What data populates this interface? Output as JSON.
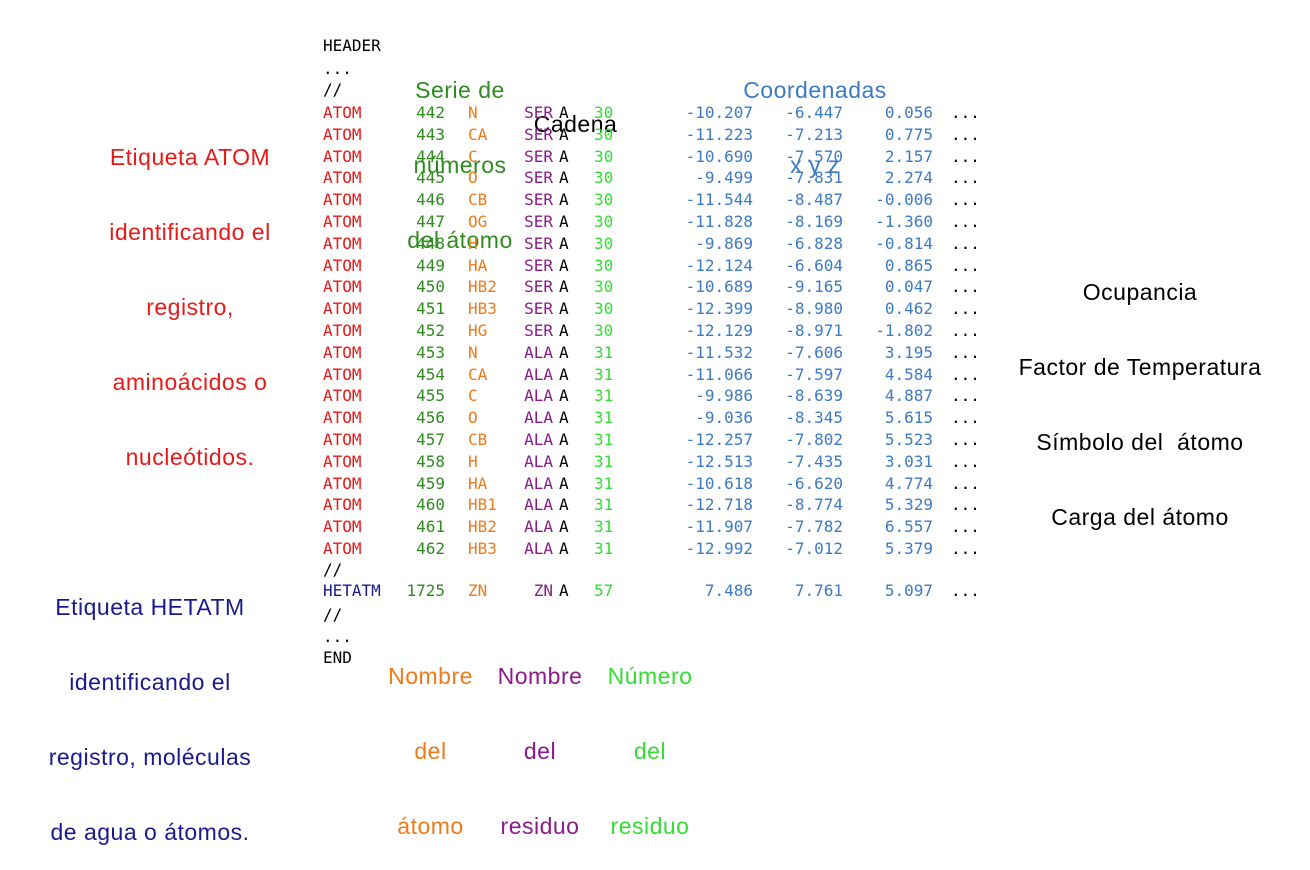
{
  "colors": {
    "record_atom": "#e81919",
    "record_hetatm": "#1a1a8c",
    "serial": "#2e8b1e",
    "atom_name": "#f07a1a",
    "residue_name": "#8a1a8a",
    "chain": "#000000",
    "residue_number": "#33dd33",
    "coordinates": "#3d7ac4",
    "text": "#000000"
  },
  "labels": {
    "atom_tag": [
      "Etiqueta ATOM",
      "identificando el",
      "registro,",
      "aminoácidos o",
      "nucleótidos."
    ],
    "hetatm_tag": [
      "Etiqueta HETATM",
      "identificando el",
      "registro, moléculas",
      "de agua o átomos."
    ],
    "extra_fields": [
      "Ocupancia",
      "Factor de Temperatura",
      "Símbolo del  átomo",
      "Carga del átomo"
    ],
    "serie": [
      "Serie de",
      "números",
      "del átomo"
    ],
    "cadena": "Cadena",
    "coordenadas": [
      "Coordenadas",
      "x y z"
    ],
    "nombre_atomo": [
      "Nombre",
      "del",
      "átomo"
    ],
    "nombre_residuo": [
      "Nombre",
      "del",
      "residuo"
    ],
    "numero_residuo": [
      "Número",
      "del",
      "residuo"
    ]
  },
  "file": {
    "header_lines": [
      "HEADER",
      "...",
      "//"
    ],
    "atoms": [
      {
        "record": "ATOM",
        "serial": "442",
        "name": "N",
        "res": "SER",
        "chain": "A",
        "resnum": "30",
        "x": "-10.207",
        "y": "-6.447",
        "z": "0.056",
        "more": "..."
      },
      {
        "record": "ATOM",
        "serial": "443",
        "name": "CA",
        "res": "SER",
        "chain": "A",
        "resnum": "30",
        "x": "-11.223",
        "y": "-7.213",
        "z": "0.775",
        "more": "..."
      },
      {
        "record": "ATOM",
        "serial": "444",
        "name": "C",
        "res": "SER",
        "chain": "A",
        "resnum": "30",
        "x": "-10.690",
        "y": "-7.570",
        "z": "2.157",
        "more": "..."
      },
      {
        "record": "ATOM",
        "serial": "445",
        "name": "O",
        "res": "SER",
        "chain": "A",
        "resnum": "30",
        "x": "-9.499",
        "y": "-7.831",
        "z": "2.274",
        "more": "..."
      },
      {
        "record": "ATOM",
        "serial": "446",
        "name": "CB",
        "res": "SER",
        "chain": "A",
        "resnum": "30",
        "x": "-11.544",
        "y": "-8.487",
        "z": "-0.006",
        "more": "..."
      },
      {
        "record": "ATOM",
        "serial": "447",
        "name": "OG",
        "res": "SER",
        "chain": "A",
        "resnum": "30",
        "x": "-11.828",
        "y": "-8.169",
        "z": "-1.360",
        "more": "..."
      },
      {
        "record": "ATOM",
        "serial": "448",
        "name": "H",
        "res": "SER",
        "chain": "A",
        "resnum": "30",
        "x": "-9.869",
        "y": "-6.828",
        "z": "-0.814",
        "more": "..."
      },
      {
        "record": "ATOM",
        "serial": "449",
        "name": "HA",
        "res": "SER",
        "chain": "A",
        "resnum": "30",
        "x": "-12.124",
        "y": "-6.604",
        "z": "0.865",
        "more": "..."
      },
      {
        "record": "ATOM",
        "serial": "450",
        "name": "HB2",
        "res": "SER",
        "chain": "A",
        "resnum": "30",
        "x": "-10.689",
        "y": "-9.165",
        "z": "0.047",
        "more": "..."
      },
      {
        "record": "ATOM",
        "serial": "451",
        "name": "HB3",
        "res": "SER",
        "chain": "A",
        "resnum": "30",
        "x": "-12.399",
        "y": "-8.980",
        "z": "0.462",
        "more": "..."
      },
      {
        "record": "ATOM",
        "serial": "452",
        "name": "HG",
        "res": "SER",
        "chain": "A",
        "resnum": "30",
        "x": "-12.129",
        "y": "-8.971",
        "z": "-1.802",
        "more": "..."
      },
      {
        "record": "ATOM",
        "serial": "453",
        "name": "N",
        "res": "ALA",
        "chain": "A",
        "resnum": "31",
        "x": "-11.532",
        "y": "-7.606",
        "z": "3.195",
        "more": "..."
      },
      {
        "record": "ATOM",
        "serial": "454",
        "name": "CA",
        "res": "ALA",
        "chain": "A",
        "resnum": "31",
        "x": "-11.066",
        "y": "-7.597",
        "z": "4.584",
        "more": "..."
      },
      {
        "record": "ATOM",
        "serial": "455",
        "name": "C",
        "res": "ALA",
        "chain": "A",
        "resnum": "31",
        "x": "-9.986",
        "y": "-8.639",
        "z": "4.887",
        "more": "..."
      },
      {
        "record": "ATOM",
        "serial": "456",
        "name": "O",
        "res": "ALA",
        "chain": "A",
        "resnum": "31",
        "x": "-9.036",
        "y": "-8.345",
        "z": "5.615",
        "more": "..."
      },
      {
        "record": "ATOM",
        "serial": "457",
        "name": "CB",
        "res": "ALA",
        "chain": "A",
        "resnum": "31",
        "x": "-12.257",
        "y": "-7.802",
        "z": "5.523",
        "more": "..."
      },
      {
        "record": "ATOM",
        "serial": "458",
        "name": "H",
        "res": "ALA",
        "chain": "A",
        "resnum": "31",
        "x": "-12.513",
        "y": "-7.435",
        "z": "3.031",
        "more": "..."
      },
      {
        "record": "ATOM",
        "serial": "459",
        "name": "HA",
        "res": "ALA",
        "chain": "A",
        "resnum": "31",
        "x": "-10.618",
        "y": "-6.620",
        "z": "4.774",
        "more": "..."
      },
      {
        "record": "ATOM",
        "serial": "460",
        "name": "HB1",
        "res": "ALA",
        "chain": "A",
        "resnum": "31",
        "x": "-12.718",
        "y": "-8.774",
        "z": "5.329",
        "more": "..."
      },
      {
        "record": "ATOM",
        "serial": "461",
        "name": "HB2",
        "res": "ALA",
        "chain": "A",
        "resnum": "31",
        "x": "-11.907",
        "y": "-7.782",
        "z": "6.557",
        "more": "..."
      },
      {
        "record": "ATOM",
        "serial": "462",
        "name": "HB3",
        "res": "ALA",
        "chain": "A",
        "resnum": "31",
        "x": "-12.992",
        "y": "-7.012",
        "z": "5.379",
        "more": "..."
      }
    ],
    "separator_1": "//",
    "hetatm": {
      "record": "HETATM",
      "serial": "1725",
      "name": "ZN",
      "res": "ZN",
      "chain": "A",
      "resnum": "57",
      "x": "7.486",
      "y": "7.761",
      "z": "5.097",
      "more": "..."
    },
    "footer_lines": [
      "//",
      "...",
      "END"
    ]
  }
}
